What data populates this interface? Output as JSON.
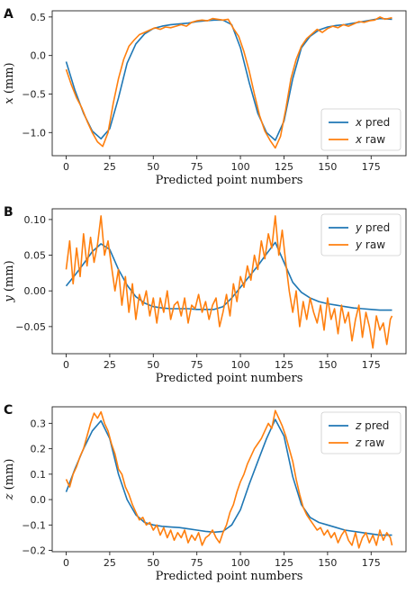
{
  "figure": {
    "colors": {
      "pred": "#1f77b4",
      "raw": "#ff7f0e"
    }
  },
  "chart_data": [
    {
      "type": "line",
      "panel_label": "A",
      "xlabel": "Predicted point numbers",
      "ylabel": "x (mm)",
      "ylabel_var": "x",
      "ylabel_unit": " (mm)",
      "xlim": [
        -8,
        195
      ],
      "ylim": [
        -1.3,
        0.58
      ],
      "xticks": [
        0,
        25,
        50,
        75,
        100,
        125,
        150,
        175
      ],
      "yticks": [
        -1.0,
        -0.5,
        0.0,
        0.5
      ],
      "ytick_labels": [
        "−1.0",
        "−0.5",
        "0.0",
        "0.5"
      ],
      "legend_position": "lower-right",
      "grid": false,
      "series": [
        {
          "name": "x pred",
          "var": "x",
          "suffix": " pred",
          "color": "#1f77b4",
          "x": [
            0,
            5,
            10,
            15,
            20,
            25,
            30,
            35,
            40,
            45,
            50,
            55,
            60,
            65,
            70,
            75,
            80,
            85,
            90,
            95,
            100,
            105,
            110,
            115,
            120,
            125,
            130,
            135,
            140,
            145,
            150,
            155,
            160,
            165,
            170,
            175,
            180,
            187
          ],
          "y": [
            -0.08,
            -0.45,
            -0.75,
            -0.98,
            -1.08,
            -0.95,
            -0.55,
            -0.1,
            0.15,
            0.28,
            0.35,
            0.38,
            0.4,
            0.41,
            0.42,
            0.44,
            0.45,
            0.46,
            0.46,
            0.4,
            0.1,
            -0.35,
            -0.75,
            -1.0,
            -1.1,
            -0.85,
            -0.3,
            0.1,
            0.25,
            0.33,
            0.37,
            0.39,
            0.4,
            0.42,
            0.44,
            0.46,
            0.48,
            0.47
          ]
        },
        {
          "name": "x raw",
          "var": "x",
          "suffix": " raw",
          "color": "#ff7f0e",
          "x": [
            0,
            3,
            6,
            9,
            12,
            15,
            18,
            21,
            24,
            27,
            30,
            33,
            36,
            39,
            42,
            45,
            48,
            51,
            54,
            57,
            60,
            63,
            66,
            69,
            72,
            75,
            78,
            81,
            84,
            87,
            90,
            93,
            96,
            99,
            102,
            105,
            108,
            111,
            114,
            117,
            120,
            123,
            126,
            129,
            132,
            135,
            138,
            141,
            144,
            147,
            150,
            153,
            156,
            159,
            162,
            165,
            168,
            171,
            174,
            177,
            180,
            183,
            187
          ],
          "y": [
            -0.18,
            -0.38,
            -0.55,
            -0.68,
            -0.85,
            -1.0,
            -1.12,
            -1.18,
            -1.0,
            -0.62,
            -0.3,
            -0.05,
            0.12,
            0.2,
            0.27,
            0.3,
            0.33,
            0.36,
            0.34,
            0.37,
            0.36,
            0.38,
            0.4,
            0.38,
            0.43,
            0.45,
            0.46,
            0.45,
            0.48,
            0.47,
            0.46,
            0.47,
            0.35,
            0.25,
            0.05,
            -0.2,
            -0.5,
            -0.78,
            -0.98,
            -1.1,
            -1.2,
            -1.05,
            -0.7,
            -0.3,
            -0.05,
            0.12,
            0.22,
            0.28,
            0.34,
            0.3,
            0.35,
            0.38,
            0.36,
            0.4,
            0.38,
            0.41,
            0.44,
            0.43,
            0.45,
            0.46,
            0.5,
            0.47,
            0.49
          ]
        }
      ]
    },
    {
      "type": "line",
      "panel_label": "B",
      "xlabel": "Predicted point numbers",
      "ylabel": "y (mm)",
      "ylabel_var": "y",
      "ylabel_unit": " (mm)",
      "xlim": [
        -8,
        195
      ],
      "ylim": [
        -0.088,
        0.115
      ],
      "xticks": [
        0,
        25,
        50,
        75,
        100,
        125,
        150,
        175
      ],
      "yticks": [
        -0.05,
        0.0,
        0.05,
        0.1
      ],
      "ytick_labels": [
        "−0.05",
        "0.00",
        "0.05",
        "0.10"
      ],
      "legend_position": "upper-right",
      "grid": false,
      "series": [
        {
          "name": "y pred",
          "var": "y",
          "suffix": " pred",
          "color": "#1f77b4",
          "x": [
            0,
            5,
            10,
            15,
            20,
            25,
            30,
            35,
            40,
            45,
            50,
            55,
            60,
            65,
            70,
            75,
            80,
            85,
            90,
            95,
            100,
            105,
            110,
            115,
            120,
            125,
            130,
            135,
            140,
            145,
            150,
            155,
            160,
            165,
            170,
            175,
            180,
            187
          ],
          "y": [
            0.007,
            0.022,
            0.038,
            0.055,
            0.066,
            0.058,
            0.03,
            0.008,
            -0.008,
            -0.017,
            -0.022,
            -0.024,
            -0.025,
            -0.025,
            -0.025,
            -0.026,
            -0.026,
            -0.026,
            -0.022,
            -0.01,
            0.005,
            0.02,
            0.035,
            0.052,
            0.068,
            0.04,
            0.012,
            -0.002,
            -0.01,
            -0.015,
            -0.018,
            -0.02,
            -0.022,
            -0.024,
            -0.025,
            -0.026,
            -0.027,
            -0.027
          ]
        },
        {
          "name": "y raw",
          "var": "y",
          "suffix": " raw",
          "color": "#ff7f0e",
          "x": [
            0,
            2,
            4,
            6,
            8,
            10,
            12,
            14,
            16,
            18,
            20,
            22,
            24,
            26,
            28,
            30,
            32,
            34,
            36,
            38,
            40,
            42,
            44,
            46,
            48,
            50,
            52,
            54,
            56,
            58,
            60,
            62,
            64,
            66,
            68,
            70,
            72,
            74,
            76,
            78,
            80,
            82,
            84,
            86,
            88,
            90,
            92,
            94,
            96,
            98,
            100,
            102,
            104,
            106,
            108,
            110,
            112,
            114,
            116,
            118,
            120,
            122,
            124,
            126,
            128,
            130,
            132,
            134,
            136,
            138,
            140,
            142,
            144,
            146,
            148,
            150,
            152,
            154,
            156,
            158,
            160,
            162,
            164,
            166,
            168,
            170,
            172,
            174,
            176,
            178,
            180,
            182,
            184,
            186,
            187
          ],
          "y": [
            0.03,
            0.07,
            0.01,
            0.06,
            0.02,
            0.08,
            0.035,
            0.075,
            0.04,
            0.065,
            0.105,
            0.05,
            0.07,
            0.035,
            0.0,
            0.03,
            -0.02,
            0.02,
            -0.03,
            0.01,
            -0.04,
            -0.005,
            -0.02,
            0.0,
            -0.035,
            -0.01,
            -0.045,
            -0.01,
            -0.03,
            0.0,
            -0.04,
            -0.02,
            -0.015,
            -0.035,
            -0.01,
            -0.045,
            -0.02,
            -0.025,
            -0.005,
            -0.03,
            -0.015,
            -0.04,
            -0.02,
            -0.01,
            -0.05,
            -0.03,
            -0.005,
            -0.035,
            0.01,
            -0.015,
            0.02,
            0.005,
            0.035,
            0.015,
            0.05,
            0.03,
            0.07,
            0.045,
            0.08,
            0.06,
            0.105,
            0.05,
            0.085,
            0.04,
            0.0,
            -0.03,
            0.0,
            -0.05,
            -0.015,
            -0.04,
            -0.01,
            -0.03,
            -0.045,
            -0.02,
            -0.055,
            -0.01,
            -0.04,
            -0.025,
            -0.06,
            -0.02,
            -0.045,
            -0.03,
            -0.07,
            -0.04,
            -0.02,
            -0.065,
            -0.03,
            -0.05,
            -0.08,
            -0.035,
            -0.055,
            -0.045,
            -0.075,
            -0.04,
            -0.035
          ]
        }
      ]
    },
    {
      "type": "line",
      "panel_label": "C",
      "xlabel": "Predicted point numbers",
      "ylabel": "z (mm)",
      "ylabel_var": "z",
      "ylabel_unit": " (mm)",
      "xlim": [
        -8,
        195
      ],
      "ylim": [
        -0.205,
        0.365
      ],
      "xticks": [
        0,
        25,
        50,
        75,
        100,
        125,
        150,
        175
      ],
      "yticks": [
        -0.2,
        -0.1,
        0.0,
        0.1,
        0.2,
        0.3
      ],
      "ytick_labels": [
        "−0.2",
        "−0.1",
        "0.0",
        "0.1",
        "0.2",
        "0.3"
      ],
      "legend_position": "upper-right",
      "grid": false,
      "series": [
        {
          "name": "z pred",
          "var": "z",
          "suffix": " pred",
          "color": "#1f77b4",
          "x": [
            0,
            5,
            10,
            15,
            20,
            25,
            30,
            35,
            40,
            45,
            50,
            55,
            60,
            65,
            70,
            75,
            80,
            85,
            90,
            95,
            100,
            105,
            110,
            115,
            120,
            125,
            130,
            135,
            140,
            145,
            150,
            155,
            160,
            165,
            170,
            175,
            180,
            187
          ],
          "y": [
            0.03,
            0.12,
            0.2,
            0.27,
            0.31,
            0.24,
            0.1,
            0.0,
            -0.06,
            -0.09,
            -0.1,
            -0.105,
            -0.108,
            -0.11,
            -0.115,
            -0.12,
            -0.125,
            -0.128,
            -0.125,
            -0.1,
            -0.04,
            0.06,
            0.15,
            0.24,
            0.315,
            0.25,
            0.09,
            -0.02,
            -0.07,
            -0.09,
            -0.1,
            -0.11,
            -0.12,
            -0.125,
            -0.13,
            -0.135,
            -0.14,
            -0.14
          ]
        },
        {
          "name": "z raw",
          "var": "z",
          "suffix": " raw",
          "color": "#ff7f0e",
          "x": [
            0,
            2,
            4,
            6,
            8,
            10,
            12,
            14,
            16,
            18,
            20,
            22,
            24,
            26,
            28,
            30,
            32,
            34,
            36,
            38,
            40,
            42,
            44,
            46,
            48,
            50,
            52,
            54,
            56,
            58,
            60,
            62,
            64,
            66,
            68,
            70,
            72,
            74,
            76,
            78,
            80,
            82,
            84,
            86,
            88,
            90,
            92,
            94,
            96,
            98,
            100,
            102,
            104,
            106,
            108,
            110,
            112,
            114,
            116,
            118,
            120,
            122,
            124,
            126,
            128,
            130,
            132,
            134,
            136,
            138,
            140,
            142,
            144,
            146,
            148,
            150,
            152,
            154,
            156,
            158,
            160,
            162,
            164,
            166,
            168,
            170,
            172,
            174,
            176,
            178,
            180,
            182,
            184,
            186,
            187
          ],
          "y": [
            0.08,
            0.05,
            0.1,
            0.13,
            0.17,
            0.2,
            0.25,
            0.3,
            0.34,
            0.32,
            0.345,
            0.3,
            0.27,
            0.22,
            0.18,
            0.12,
            0.1,
            0.05,
            0.02,
            -0.02,
            -0.05,
            -0.08,
            -0.07,
            -0.1,
            -0.09,
            -0.12,
            -0.1,
            -0.14,
            -0.11,
            -0.15,
            -0.12,
            -0.16,
            -0.13,
            -0.15,
            -0.12,
            -0.17,
            -0.14,
            -0.16,
            -0.13,
            -0.18,
            -0.15,
            -0.14,
            -0.12,
            -0.15,
            -0.17,
            -0.13,
            -0.1,
            -0.05,
            -0.02,
            0.03,
            0.07,
            0.1,
            0.14,
            0.17,
            0.2,
            0.22,
            0.24,
            0.27,
            0.3,
            0.28,
            0.35,
            0.32,
            0.29,
            0.25,
            0.2,
            0.15,
            0.08,
            0.02,
            -0.03,
            -0.06,
            -0.08,
            -0.1,
            -0.12,
            -0.11,
            -0.14,
            -0.12,
            -0.15,
            -0.13,
            -0.17,
            -0.14,
            -0.12,
            -0.16,
            -0.18,
            -0.13,
            -0.19,
            -0.15,
            -0.13,
            -0.17,
            -0.14,
            -0.18,
            -0.12,
            -0.16,
            -0.13,
            -0.15,
            -0.18
          ]
        }
      ]
    }
  ]
}
